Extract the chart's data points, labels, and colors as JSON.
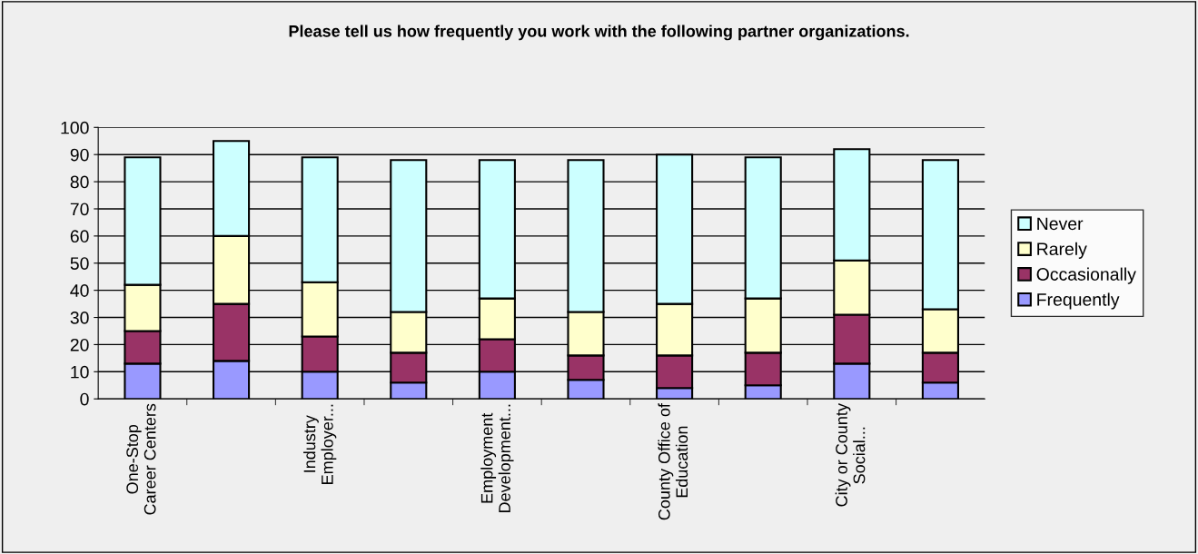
{
  "chart_data": {
    "type": "bar",
    "title": "Please tell us how frequently you work with the following partner organizations.",
    "categories": [
      "One-Stop\nCareer Centers",
      null,
      "Industry\nEmployer...",
      null,
      "Employment\nDevelopment...",
      null,
      "County Office of\nEducation",
      null,
      "City or County\nSocial...",
      null
    ],
    "stacked": true,
    "series": [
      {
        "name": "Frequently",
        "color": "#9999ff",
        "values": [
          13,
          14,
          10,
          6,
          10,
          7,
          4,
          5,
          13,
          6
        ]
      },
      {
        "name": "Occasionally",
        "color": "#993366",
        "values": [
          12,
          21,
          13,
          11,
          12,
          9,
          12,
          12,
          18,
          11
        ]
      },
      {
        "name": "Rarely",
        "color": "#ffffcc",
        "values": [
          17,
          25,
          20,
          15,
          15,
          16,
          19,
          20,
          20,
          16
        ]
      },
      {
        "name": "Never",
        "color": "#ccffff",
        "values": [
          47,
          35,
          46,
          56,
          51,
          56,
          55,
          52,
          41,
          55
        ]
      }
    ],
    "ylim": [
      0,
      100
    ],
    "yticks": [
      0,
      10,
      20,
      30,
      40,
      50,
      60,
      70,
      80,
      90,
      100
    ],
    "grid": "y",
    "legend": "right"
  }
}
